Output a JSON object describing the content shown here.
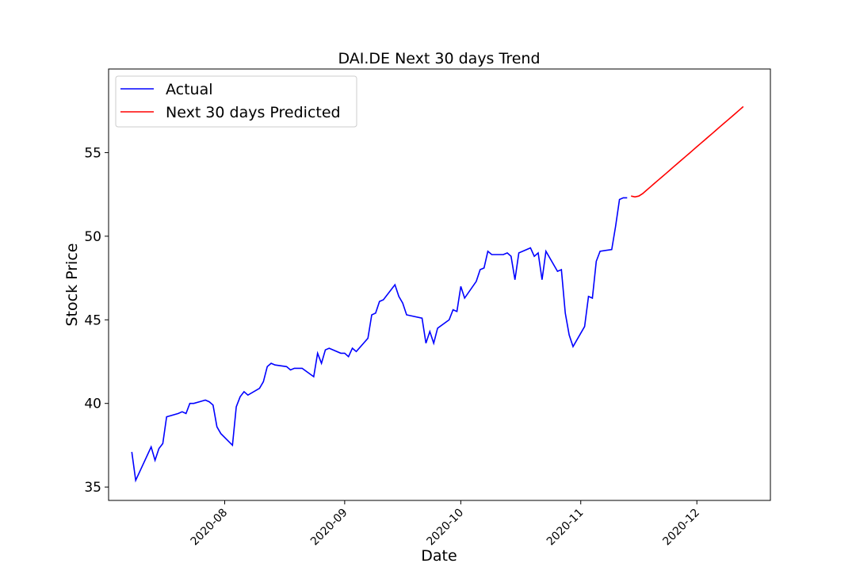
{
  "chart_data": {
    "type": "line",
    "title": "DAI.DE Next 30 days Trend",
    "xlabel": "Date",
    "ylabel": "Stock Price",
    "xlim": [
      "2020-07-02",
      "2020-12-20"
    ],
    "ylim": [
      34.2,
      60.0
    ],
    "yticks": [
      35,
      40,
      45,
      50,
      55
    ],
    "xticks": [
      "2020-08",
      "2020-09",
      "2020-10",
      "2020-11",
      "2020-12"
    ],
    "xtick_dates": [
      "2020-08-01",
      "2020-09-01",
      "2020-10-01",
      "2020-11-01",
      "2020-12-01"
    ],
    "grid": false,
    "legend_position": "top-left",
    "series": [
      {
        "name": "Actual",
        "color": "#0000ff",
        "points": [
          [
            "2020-07-08",
            37.1
          ],
          [
            "2020-07-09",
            35.4
          ],
          [
            "2020-07-13",
            37.4
          ],
          [
            "2020-07-14",
            36.6
          ],
          [
            "2020-07-15",
            37.3
          ],
          [
            "2020-07-16",
            37.6
          ],
          [
            "2020-07-17",
            39.2
          ],
          [
            "2020-07-20",
            39.4
          ],
          [
            "2020-07-21",
            39.5
          ],
          [
            "2020-07-22",
            39.4
          ],
          [
            "2020-07-23",
            40.0
          ],
          [
            "2020-07-24",
            40.0
          ],
          [
            "2020-07-27",
            40.2
          ],
          [
            "2020-07-28",
            40.1
          ],
          [
            "2020-07-29",
            39.9
          ],
          [
            "2020-07-30",
            38.6
          ],
          [
            "2020-07-31",
            38.2
          ],
          [
            "2020-08-03",
            37.5
          ],
          [
            "2020-08-04",
            39.8
          ],
          [
            "2020-08-05",
            40.4
          ],
          [
            "2020-08-06",
            40.7
          ],
          [
            "2020-08-07",
            40.5
          ],
          [
            "2020-08-10",
            40.9
          ],
          [
            "2020-08-11",
            41.3
          ],
          [
            "2020-08-12",
            42.2
          ],
          [
            "2020-08-13",
            42.4
          ],
          [
            "2020-08-14",
            42.3
          ],
          [
            "2020-08-17",
            42.2
          ],
          [
            "2020-08-18",
            42.0
          ],
          [
            "2020-08-19",
            42.1
          ],
          [
            "2020-08-20",
            42.1
          ],
          [
            "2020-08-21",
            42.1
          ],
          [
            "2020-08-24",
            41.6
          ],
          [
            "2020-08-25",
            43.0
          ],
          [
            "2020-08-26",
            42.4
          ],
          [
            "2020-08-27",
            43.2
          ],
          [
            "2020-08-28",
            43.3
          ],
          [
            "2020-08-31",
            43.0
          ],
          [
            "2020-09-01",
            43.0
          ],
          [
            "2020-09-02",
            42.8
          ],
          [
            "2020-09-03",
            43.3
          ],
          [
            "2020-09-04",
            43.1
          ],
          [
            "2020-09-07",
            43.9
          ],
          [
            "2020-09-08",
            45.3
          ],
          [
            "2020-09-09",
            45.4
          ],
          [
            "2020-09-10",
            46.1
          ],
          [
            "2020-09-11",
            46.2
          ],
          [
            "2020-09-14",
            47.1
          ],
          [
            "2020-09-15",
            46.4
          ],
          [
            "2020-09-16",
            46.0
          ],
          [
            "2020-09-17",
            45.3
          ],
          [
            "2020-09-21",
            45.1
          ],
          [
            "2020-09-22",
            43.6
          ],
          [
            "2020-09-23",
            44.3
          ],
          [
            "2020-09-24",
            43.6
          ],
          [
            "2020-09-25",
            44.5
          ],
          [
            "2020-09-28",
            45.0
          ],
          [
            "2020-09-29",
            45.6
          ],
          [
            "2020-09-30",
            45.5
          ],
          [
            "2020-10-01",
            47.0
          ],
          [
            "2020-10-02",
            46.3
          ],
          [
            "2020-10-05",
            47.3
          ],
          [
            "2020-10-06",
            48.0
          ],
          [
            "2020-10-07",
            48.1
          ],
          [
            "2020-10-08",
            49.1
          ],
          [
            "2020-10-09",
            48.9
          ],
          [
            "2020-10-12",
            48.9
          ],
          [
            "2020-10-13",
            49.0
          ],
          [
            "2020-10-14",
            48.8
          ],
          [
            "2020-10-15",
            47.4
          ],
          [
            "2020-10-16",
            49.0
          ],
          [
            "2020-10-19",
            49.3
          ],
          [
            "2020-10-20",
            48.8
          ],
          [
            "2020-10-21",
            49.0
          ],
          [
            "2020-10-22",
            47.4
          ],
          [
            "2020-10-23",
            49.1
          ],
          [
            "2020-10-26",
            47.9
          ],
          [
            "2020-10-27",
            48.0
          ],
          [
            "2020-10-28",
            45.4
          ],
          [
            "2020-10-29",
            44.1
          ],
          [
            "2020-10-30",
            43.4
          ],
          [
            "2020-11-02",
            44.6
          ],
          [
            "2020-11-03",
            46.4
          ],
          [
            "2020-11-04",
            46.3
          ],
          [
            "2020-11-05",
            48.5
          ],
          [
            "2020-11-06",
            49.1
          ],
          [
            "2020-11-09",
            49.2
          ],
          [
            "2020-11-10",
            50.6
          ],
          [
            "2020-11-11",
            52.2
          ],
          [
            "2020-11-12",
            52.3
          ],
          [
            "2020-11-13",
            52.3
          ]
        ]
      },
      {
        "name": "Next 30 days Predicted",
        "color": "#ff0000",
        "points": [
          [
            "2020-11-14",
            52.4
          ],
          [
            "2020-11-15",
            52.35
          ],
          [
            "2020-11-16",
            52.4
          ],
          [
            "2020-11-17",
            52.55
          ],
          [
            "2020-11-18",
            52.75
          ],
          [
            "2020-11-19",
            52.95
          ],
          [
            "2020-11-20",
            53.15
          ],
          [
            "2020-11-21",
            53.35
          ],
          [
            "2020-11-22",
            53.55
          ],
          [
            "2020-11-23",
            53.75
          ],
          [
            "2020-11-24",
            53.95
          ],
          [
            "2020-11-25",
            54.15
          ],
          [
            "2020-11-26",
            54.35
          ],
          [
            "2020-11-27",
            54.55
          ],
          [
            "2020-11-28",
            54.75
          ],
          [
            "2020-11-29",
            54.95
          ],
          [
            "2020-11-30",
            55.15
          ],
          [
            "2020-12-01",
            55.35
          ],
          [
            "2020-12-02",
            55.55
          ],
          [
            "2020-12-03",
            55.75
          ],
          [
            "2020-12-04",
            55.95
          ],
          [
            "2020-12-05",
            56.15
          ],
          [
            "2020-12-06",
            56.35
          ],
          [
            "2020-12-07",
            56.55
          ],
          [
            "2020-12-08",
            56.75
          ],
          [
            "2020-12-09",
            56.95
          ],
          [
            "2020-12-10",
            57.15
          ],
          [
            "2020-12-11",
            57.35
          ],
          [
            "2020-12-12",
            57.55
          ],
          [
            "2020-12-13",
            57.75
          ]
        ]
      }
    ]
  }
}
